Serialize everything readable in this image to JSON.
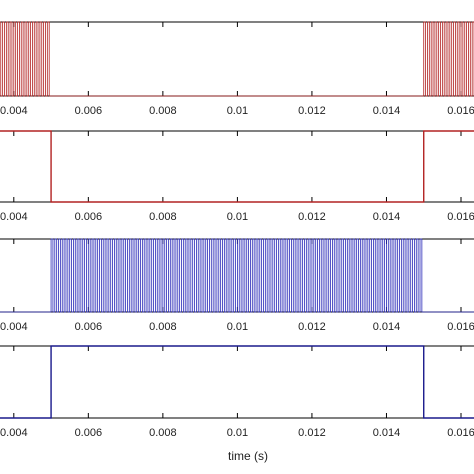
{
  "chart_data": [
    {
      "type": "line",
      "signal": "pwm",
      "color": "#b22222",
      "xlim": [
        0.003,
        0.0167
      ],
      "ylim": [
        0,
        1
      ],
      "x_ticks": [
        0.004,
        0.006,
        0.008,
        0.01,
        0.012,
        0.014,
        0.016
      ],
      "tick_labels": [
        "0.004",
        "0.006",
        "0.008",
        "0.01",
        "0.012",
        "0.014",
        "0.016"
      ],
      "xlabel": "",
      "active_intervals": [
        [
          0.003,
          0.005
        ],
        [
          0.015,
          0.0167
        ]
      ],
      "switching_period": 0.0001,
      "duty_cycle": 0.5,
      "low": 0,
      "high": 1,
      "grid": false
    },
    {
      "type": "line",
      "signal": "square",
      "color": "#b22222",
      "xlim": [
        0.003,
        0.0167
      ],
      "ylim": [
        0,
        1
      ],
      "x_ticks": [
        0.004,
        0.006,
        0.008,
        0.01,
        0.012,
        0.014,
        0.016
      ],
      "tick_labels": [
        "0.004",
        "0.006",
        "0.008",
        "0.01",
        "0.012",
        "0.014",
        "0.016"
      ],
      "xlabel": "",
      "x": [
        0.003,
        0.005,
        0.005,
        0.015,
        0.015,
        0.0167
      ],
      "y": [
        1,
        1,
        0,
        0,
        1,
        1
      ],
      "grid": false
    },
    {
      "type": "line",
      "signal": "pwm",
      "color": "#2b2bb8",
      "xlim": [
        0.003,
        0.0167
      ],
      "ylim": [
        0,
        1
      ],
      "x_ticks": [
        0.004,
        0.006,
        0.008,
        0.01,
        0.012,
        0.014,
        0.016
      ],
      "tick_labels": [
        "0.004",
        "0.006",
        "0.008",
        "0.01",
        "0.012",
        "0.014",
        "0.016"
      ],
      "xlabel": "",
      "active_intervals": [
        [
          0.005,
          0.015
        ]
      ],
      "switching_period": 0.0001,
      "duty_cycle": 0.5,
      "low": 0,
      "high": 1,
      "grid": false
    },
    {
      "type": "line",
      "signal": "square",
      "color": "#1a1a8c",
      "xlim": [
        0.003,
        0.0167
      ],
      "ylim": [
        0,
        1
      ],
      "x_ticks": [
        0.004,
        0.006,
        0.008,
        0.01,
        0.012,
        0.014,
        0.016
      ],
      "tick_labels": [
        "0.004",
        "0.006",
        "0.008",
        "0.01",
        "0.012",
        "0.014",
        "0.016"
      ],
      "xlabel": "time (s)",
      "x": [
        0.003,
        0.005,
        0.005,
        0.015,
        0.015,
        0.0167
      ],
      "y": [
        0,
        0,
        1,
        1,
        0,
        0
      ],
      "grid": false
    }
  ]
}
